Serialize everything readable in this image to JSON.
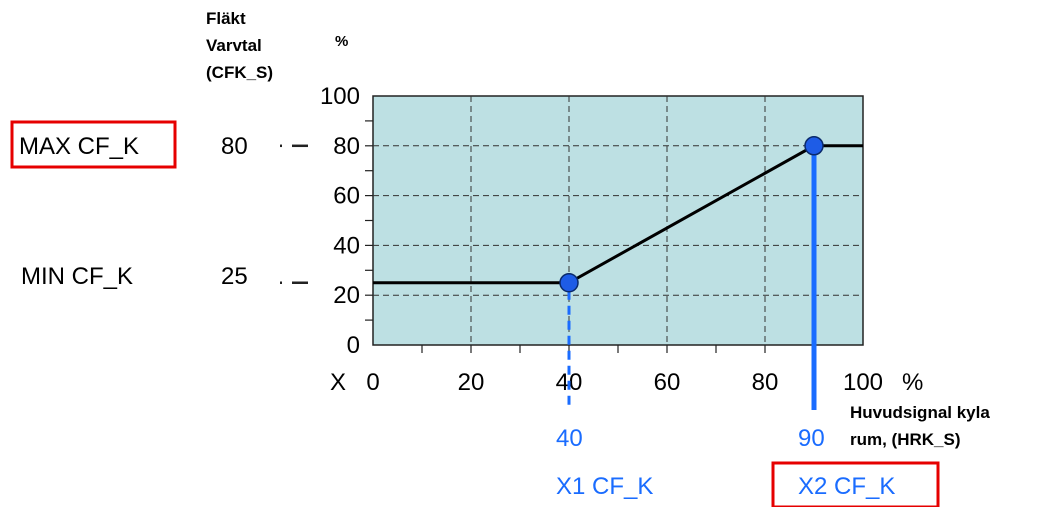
{
  "chart_data": {
    "type": "line",
    "y_axis_title": [
      "Fläkt",
      "Varvtal",
      "(CFK_S)"
    ],
    "y_unit": "%",
    "x_prefix": "X",
    "x_unit": "%",
    "x_axis_title": [
      "Huvudsignal kyla",
      "rum, (HRK_S)"
    ],
    "xlim": [
      0,
      100
    ],
    "ylim": [
      0,
      100
    ],
    "x_ticks": [
      "0",
      "20",
      "40",
      "60",
      "80",
      "100"
    ],
    "y_ticks": [
      "0",
      "20",
      "40",
      "60",
      "80",
      "100"
    ],
    "grid": true,
    "series": [
      {
        "x": [
          0,
          40,
          90,
          100
        ],
        "y": [
          25,
          25,
          80,
          80
        ]
      }
    ],
    "points": [
      {
        "x": 40,
        "y": 25
      },
      {
        "x": 90,
        "y": 80
      }
    ],
    "colors": {
      "plot_bg": "#bde0e3",
      "line": "#000000",
      "point": "#1e5ce6",
      "accent": "#1a6cff",
      "highlight_box": "#e60000"
    }
  },
  "left_labels": {
    "max_label": "MAX CF_K",
    "max_value": "80",
    "min_label": "MIN CF_K",
    "min_value": "25"
  },
  "bottom_labels": {
    "x1_value": "40",
    "x1_label": "X1 CF_K",
    "x2_value": "90",
    "x2_label": "X2 CF_K"
  }
}
